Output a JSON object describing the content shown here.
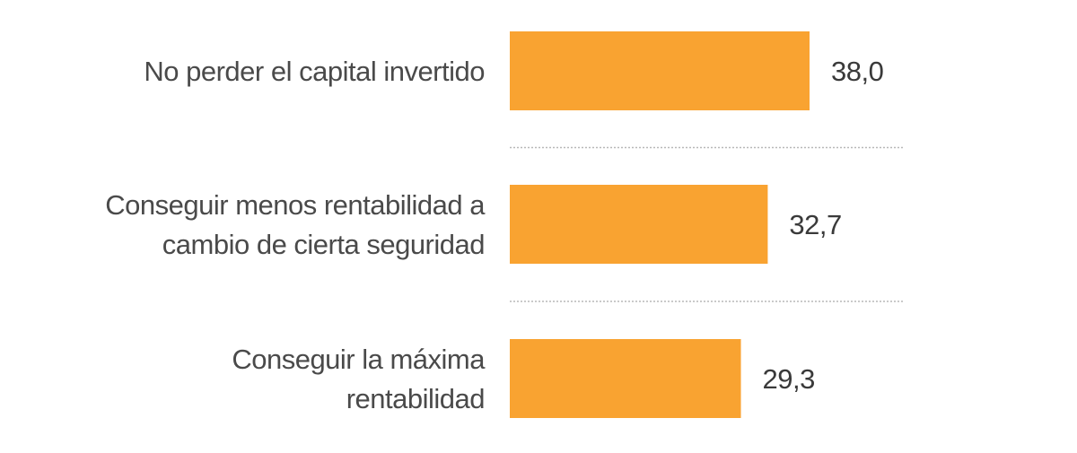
{
  "chart_data": {
    "type": "bar",
    "orientation": "horizontal",
    "categories": [
      [
        "No perder el capital invertido"
      ],
      [
        "Conseguir menos rentabilidad a",
        "cambio de cierta seguridad"
      ],
      [
        "Conseguir la máxima",
        "rentabilidad"
      ]
    ],
    "values": [
      38.0,
      32.7,
      29.3
    ],
    "value_labels": [
      "38,0",
      "32,7",
      "29,3"
    ],
    "bar_color": "#f9a331",
    "title": "",
    "xlabel": "",
    "ylabel": "",
    "xlim": [
      0,
      50
    ],
    "grid": false,
    "separators": "dotted"
  }
}
